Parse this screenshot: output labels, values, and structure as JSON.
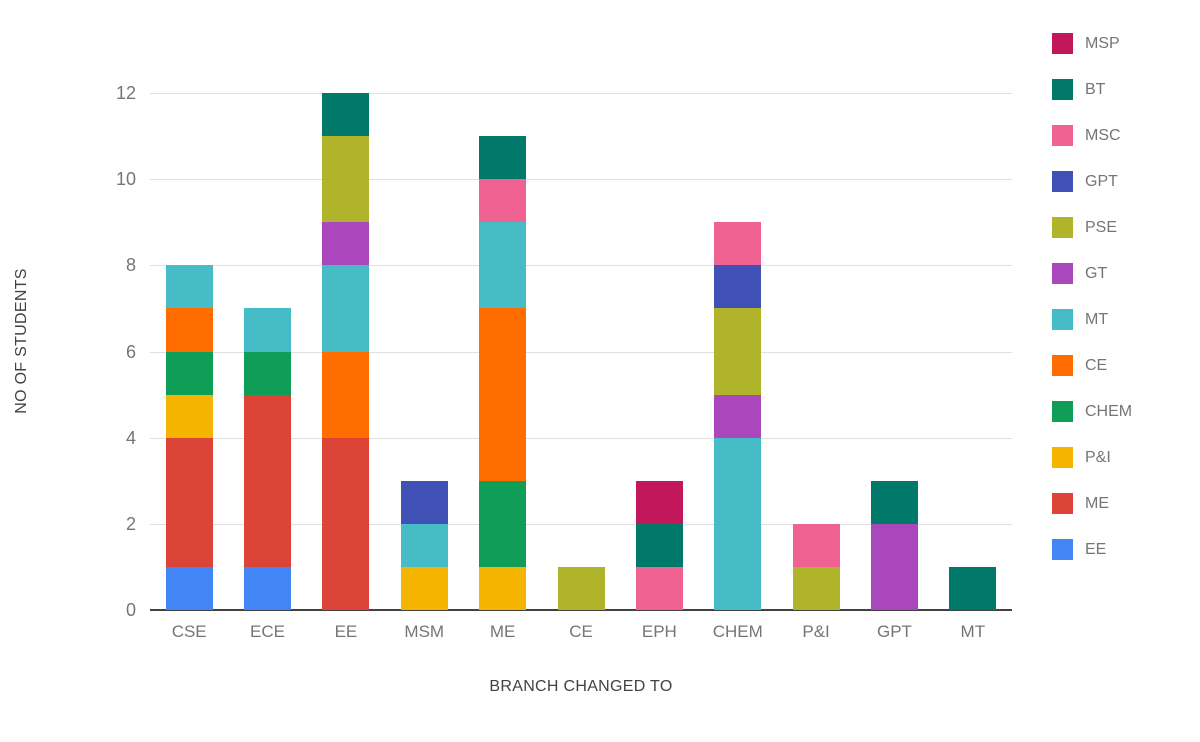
{
  "chart_data": {
    "type": "bar",
    "stacked": true,
    "xlabel": "BRANCH CHANGED TO",
    "ylabel": "NO OF STUDENTS",
    "ylim": [
      0,
      12
    ],
    "yticks": [
      0,
      2,
      4,
      6,
      8,
      10,
      12
    ],
    "grid": true,
    "legend_position": "right",
    "categories": [
      "CSE",
      "ECE",
      "EE",
      "MSM",
      "ME",
      "CE",
      "EPH",
      "CHEM",
      "P&I",
      "GPT",
      "MT"
    ],
    "series": [
      {
        "name": "EE",
        "color": "#4285F4",
        "values": [
          1,
          1,
          0,
          0,
          0,
          0,
          0,
          0,
          0,
          0,
          0
        ]
      },
      {
        "name": "ME",
        "color": "#DB4437",
        "values": [
          3,
          4,
          4,
          0,
          0,
          0,
          0,
          0,
          0,
          0,
          0
        ]
      },
      {
        "name": "P&I",
        "color": "#F4B400",
        "values": [
          1,
          0,
          0,
          1,
          1,
          0,
          0,
          0,
          0,
          0,
          0
        ]
      },
      {
        "name": "CHEM",
        "color": "#0F9D58",
        "values": [
          1,
          1,
          0,
          0,
          2,
          0,
          0,
          0,
          0,
          0,
          0
        ]
      },
      {
        "name": "CE",
        "color": "#FF6D00",
        "values": [
          1,
          0,
          2,
          0,
          4,
          0,
          0,
          0,
          0,
          0,
          0
        ]
      },
      {
        "name": "MT",
        "color": "#46BDC6",
        "values": [
          1,
          1,
          2,
          1,
          2,
          0,
          0,
          4,
          0,
          0,
          0
        ]
      },
      {
        "name": "GT",
        "color": "#AB47BC",
        "values": [
          0,
          0,
          1,
          0,
          0,
          0,
          0,
          1,
          0,
          2,
          0
        ]
      },
      {
        "name": "PSE",
        "color": "#AFB42B",
        "values": [
          0,
          0,
          2,
          0,
          0,
          1,
          0,
          2,
          1,
          0,
          0
        ]
      },
      {
        "name": "GPT",
        "color": "#3F51B5",
        "values": [
          0,
          0,
          0,
          1,
          0,
          0,
          0,
          1,
          0,
          0,
          0
        ]
      },
      {
        "name": "MSC",
        "color": "#F06292",
        "values": [
          0,
          0,
          0,
          0,
          1,
          0,
          1,
          1,
          1,
          0,
          0
        ]
      },
      {
        "name": "BT",
        "color": "#00796B",
        "values": [
          0,
          0,
          1,
          0,
          1,
          0,
          1,
          0,
          0,
          1,
          1
        ]
      },
      {
        "name": "MSP",
        "color": "#C2185B",
        "values": [
          0,
          0,
          0,
          0,
          0,
          0,
          1,
          0,
          0,
          0,
          0
        ]
      }
    ],
    "legend_order": [
      "MSP",
      "BT",
      "MSC",
      "GPT",
      "PSE",
      "GT",
      "MT",
      "CE",
      "CHEM",
      "P&I",
      "ME",
      "EE"
    ]
  }
}
